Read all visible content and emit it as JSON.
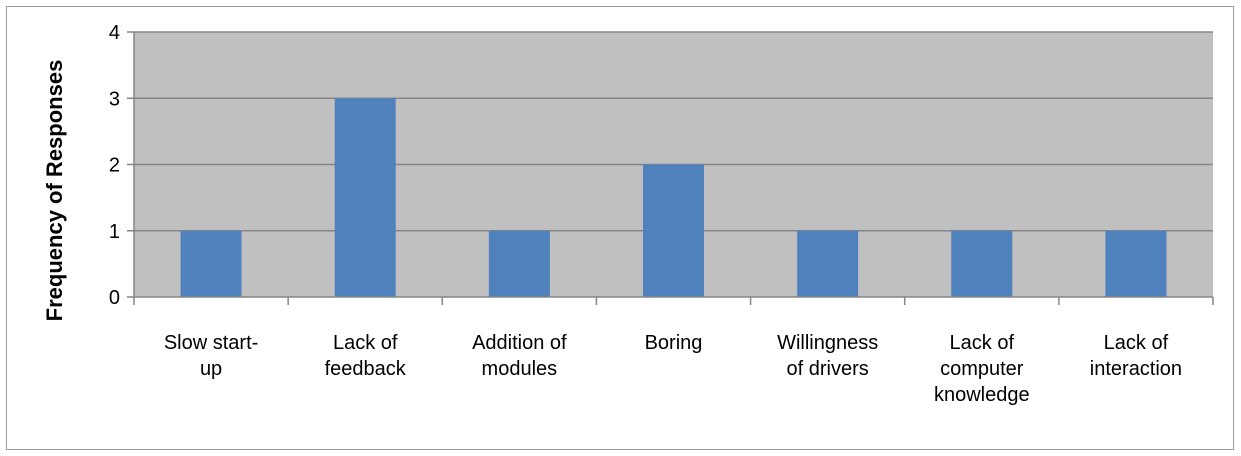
{
  "chart_data": {
    "type": "bar",
    "title": "",
    "xlabel": "",
    "ylabel": "Frequency of Responses",
    "categories": [
      [
        "Slow start-",
        "up"
      ],
      [
        "Lack of",
        "feedback"
      ],
      [
        "Addition of",
        "modules"
      ],
      [
        "Boring"
      ],
      [
        "Willingness",
        "of drivers"
      ],
      [
        "Lack of",
        "computer",
        "knowledge"
      ],
      [
        "Lack of",
        "interaction"
      ]
    ],
    "values": [
      1,
      3,
      1,
      2,
      1,
      1,
      1
    ],
    "ylim": [
      0,
      4
    ],
    "yticks": [
      0,
      1,
      2,
      3,
      4
    ],
    "grid": true,
    "legend": "none",
    "colors": {
      "bar": "#4f81bd",
      "plot_background": "#c0c0c0",
      "gridline": "#868686",
      "axis": "#868686"
    }
  }
}
